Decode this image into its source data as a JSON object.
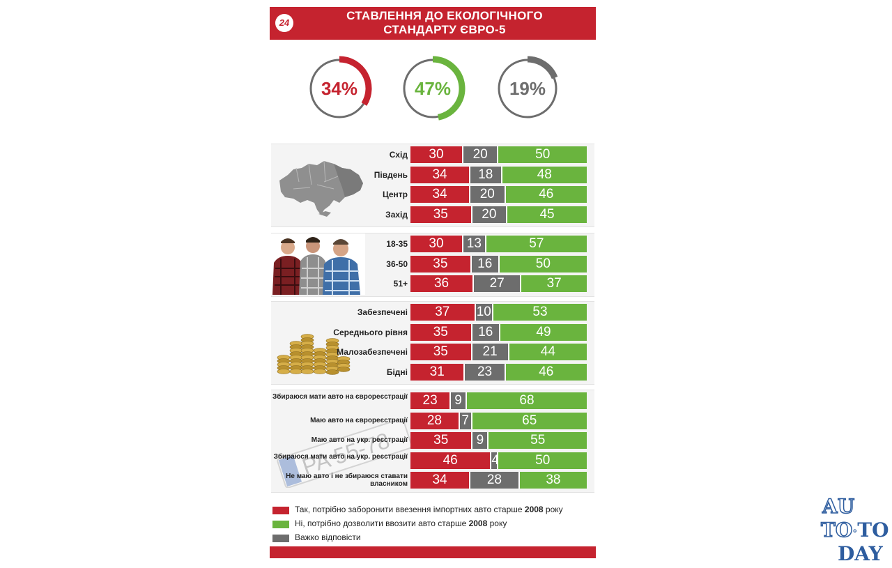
{
  "header": {
    "logo": "24",
    "title_line1": "СТАВЛЕННЯ ДО ЕКОЛОГІЧНОГО",
    "title_line2": "СТАНДАРТУ ЄВРО-5"
  },
  "colors": {
    "yes": "#c5232f",
    "hard": "#6d6d6d",
    "no": "#6ab43e",
    "ring_base": "#6d6d6d"
  },
  "chart_data": [
    {
      "type": "pie",
      "categories": [
        "Так",
        "Ні",
        "Важко відповісти"
      ],
      "values": [
        34,
        47,
        19
      ],
      "labels": [
        "34%",
        "47%",
        "19%"
      ]
    },
    {
      "type": "bar",
      "stacked": true,
      "series_order": [
        "yes",
        "hard",
        "no"
      ],
      "groups": [
        {
          "key": "region",
          "rows": [
            {
              "label": "Схід",
              "values": [
                30,
                20,
                50
              ]
            },
            {
              "label": "Південь",
              "values": [
                34,
                18,
                48
              ]
            },
            {
              "label": "Центр",
              "values": [
                34,
                20,
                46
              ]
            },
            {
              "label": "Захід",
              "values": [
                35,
                20,
                45
              ]
            }
          ]
        },
        {
          "key": "age",
          "rows": [
            {
              "label": "18-35",
              "values": [
                30,
                13,
                57
              ]
            },
            {
              "label": "36-50",
              "values": [
                35,
                16,
                50
              ]
            },
            {
              "label": "51+",
              "values": [
                36,
                27,
                37
              ]
            }
          ]
        },
        {
          "key": "income",
          "rows": [
            {
              "label": "Забезпечені",
              "values": [
                37,
                10,
                53
              ]
            },
            {
              "label": "Середнього рівня",
              "values": [
                35,
                16,
                49
              ]
            },
            {
              "label": "Малозабезпечені",
              "values": [
                35,
                21,
                44
              ]
            },
            {
              "label": "Бідні",
              "values": [
                31,
                23,
                46
              ]
            }
          ]
        },
        {
          "key": "car",
          "rows": [
            {
              "label": "Збираюся мати авто на єврореєстрації",
              "values": [
                23,
                9,
                68
              ]
            },
            {
              "label": "Маю авто на єврореєстрації",
              "values": [
                28,
                7,
                65
              ]
            },
            {
              "label": "Маю авто на укр. реєстрації",
              "values": [
                35,
                9,
                55
              ]
            },
            {
              "label": "Збираюся мати авто на укр. реєстрації",
              "values": [
                46,
                4,
                50
              ]
            },
            {
              "label": "Не маю авто і не збираюся ставати власником",
              "values": [
                34,
                28,
                38
              ]
            }
          ]
        }
      ]
    }
  ],
  "legend": {
    "yes": {
      "text_before": "Так, потрібно заборонити ввезення імпортних авто старше ",
      "year": "2008",
      "text_after": " року"
    },
    "no": {
      "text_before": "Ні, потрібно дозволити ввозити авто старше ",
      "year": "2008",
      "text_after": " року"
    },
    "hard": {
      "text": "Важко відповісти"
    }
  },
  "plate_text": "PA 55-78",
  "watermark": {
    "line1": "AU",
    "line2a": "TO",
    "line2b": "TO",
    "line3": "DAY"
  }
}
